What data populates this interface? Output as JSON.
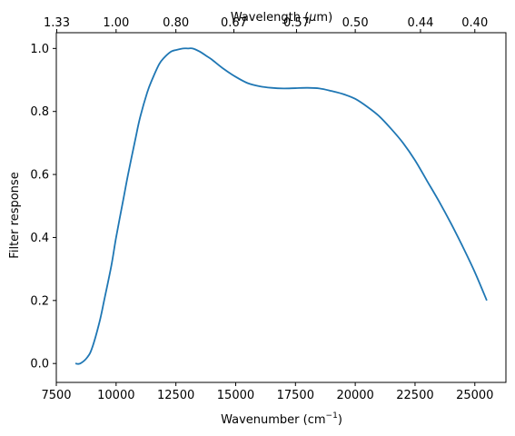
{
  "chart_data": {
    "type": "line",
    "xlabel": "Wavenumber (cm",
    "xlabel_sup": "−1",
    "xlabel_suffix": ")",
    "ylabel": "Filter response",
    "top_xlabel": "Wavelength (",
    "top_xlabel_mu": "μ",
    "top_xlabel_suffix": "m)",
    "xlim": [
      7500,
      26300
    ],
    "ylim": [
      -0.06,
      1.05
    ],
    "grid": false,
    "x_ticks": [
      7500,
      10000,
      12500,
      15000,
      17500,
      20000,
      22500,
      25000
    ],
    "x_tick_labels": [
      "7500",
      "10000",
      "12500",
      "15000",
      "17500",
      "20000",
      "22500",
      "25000"
    ],
    "y_ticks": [
      0.0,
      0.2,
      0.4,
      0.6,
      0.8,
      1.0
    ],
    "y_tick_labels": [
      "0.0",
      "0.2",
      "0.4",
      "0.6",
      "0.8",
      "1.0"
    ],
    "top_ticks": [
      1.33,
      1.0,
      0.8,
      0.67,
      0.57,
      0.5,
      0.44,
      0.4
    ],
    "top_tick_labels": [
      "1.33",
      "1.00",
      "0.80",
      "0.67",
      "0.57",
      "0.50",
      "0.44",
      "0.40"
    ],
    "series": [
      {
        "color": "#1f77b4",
        "x": [
          8300,
          8500,
          8800,
          9000,
          9300,
          9500,
          9800,
          10000,
          10300,
          10500,
          10800,
          11000,
          11300,
          11500,
          11800,
          12000,
          12300,
          12500,
          12800,
          13000,
          13200,
          13500,
          13800,
          14000,
          14500,
          15000,
          15500,
          16000,
          16500,
          17000,
          17500,
          18000,
          18500,
          19000,
          19500,
          20000,
          20500,
          21000,
          21500,
          22000,
          22500,
          23000,
          23500,
          24000,
          24500,
          25000,
          25500
        ],
        "y": [
          0.0,
          0.0,
          0.02,
          0.05,
          0.13,
          0.2,
          0.31,
          0.4,
          0.52,
          0.6,
          0.71,
          0.78,
          0.86,
          0.9,
          0.95,
          0.97,
          0.99,
          0.995,
          1.0,
          1.0,
          1.0,
          0.99,
          0.975,
          0.965,
          0.935,
          0.91,
          0.89,
          0.88,
          0.875,
          0.873,
          0.874,
          0.875,
          0.873,
          0.865,
          0.855,
          0.84,
          0.815,
          0.785,
          0.745,
          0.7,
          0.645,
          0.58,
          0.515,
          0.445,
          0.37,
          0.29,
          0.2
        ]
      }
    ]
  }
}
